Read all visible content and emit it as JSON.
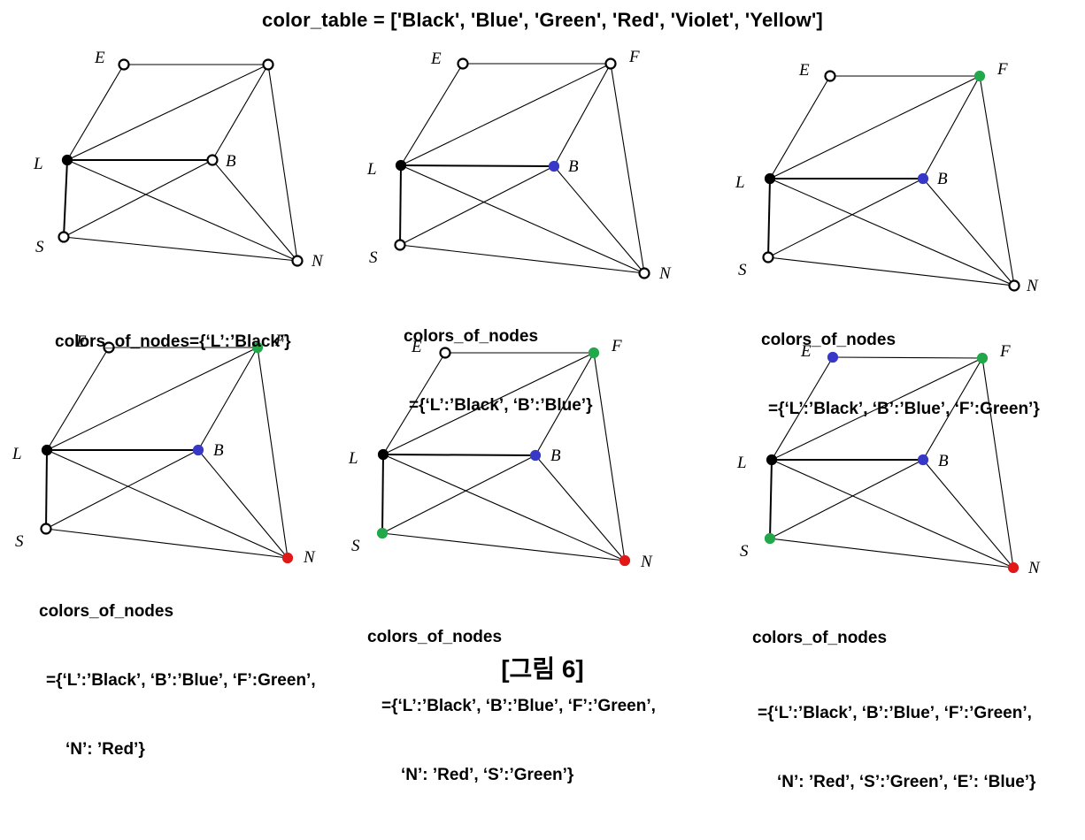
{
  "title": "color_table = ['Black', 'Blue', 'Green', 'Red', 'Violet', 'Yellow']",
  "figure_label": "[그림 6]",
  "color_table": [
    "Black",
    "Blue",
    "Green",
    "Red",
    "Violet",
    "Yellow"
  ],
  "node_names": [
    "E",
    "F",
    "L",
    "B",
    "S",
    "N"
  ],
  "edges": [
    [
      "E",
      "F"
    ],
    [
      "E",
      "L"
    ],
    [
      "F",
      "L"
    ],
    [
      "F",
      "B"
    ],
    [
      "F",
      "N"
    ],
    [
      "L",
      "B"
    ],
    [
      "L",
      "S"
    ],
    [
      "L",
      "N"
    ],
    [
      "B",
      "S"
    ],
    [
      "B",
      "N"
    ],
    [
      "S",
      "N"
    ]
  ],
  "palette": {
    "Black": "#000000",
    "Blue": "#3838c8",
    "Green": "#22a84a",
    "Red": "#e01818",
    "Uncolored": "#ffffff"
  },
  "panels": [
    {
      "caption_line1": "colors_of_nodes={‘L’:’Black’}",
      "caption_line2": "",
      "caption_line3": "",
      "colors": {
        "L": "Black"
      }
    },
    {
      "caption_line1": "colors_of_nodes",
      "caption_line2": "={‘L’:’Black’, ‘B’:’Blue’}",
      "caption_line3": "",
      "colors": {
        "L": "Black",
        "B": "Blue"
      }
    },
    {
      "caption_line1": "colors_of_nodes",
      "caption_line2": "={‘L’:’Black’, ‘B’:’Blue’, ‘F’:Green’}",
      "caption_line3": "",
      "colors": {
        "L": "Black",
        "B": "Blue",
        "F": "Green"
      }
    },
    {
      "caption_line1": "colors_of_nodes",
      "caption_line2": "={‘L’:’Black’, ‘B’:’Blue’, ‘F’:Green’,",
      "caption_line3": "‘N’: ’Red’}",
      "colors": {
        "L": "Black",
        "B": "Blue",
        "F": "Green",
        "N": "Red"
      }
    },
    {
      "caption_line1": "colors_of_nodes",
      "caption_line2": "={‘L’:’Black’, ‘B’:’Blue’, ‘F’:’Green’,",
      "caption_line3": "‘N’: ’Red’, ‘S’:’Green’}",
      "colors": {
        "L": "Black",
        "B": "Blue",
        "F": "Green",
        "N": "Red",
        "S": "Green"
      }
    },
    {
      "caption_line1": "colors_of_nodes",
      "caption_line2": "={‘L’:’Black’, ‘B’:’Blue’, ‘F’:’Green’,",
      "caption_line3": "‘N’: ’Red’, ‘S’:’Green’, ‘E’: ‘Blue’}",
      "colors": {
        "L": "Black",
        "B": "Blue",
        "F": "Green",
        "N": "Red",
        "S": "Green",
        "E": "Blue"
      }
    }
  ]
}
